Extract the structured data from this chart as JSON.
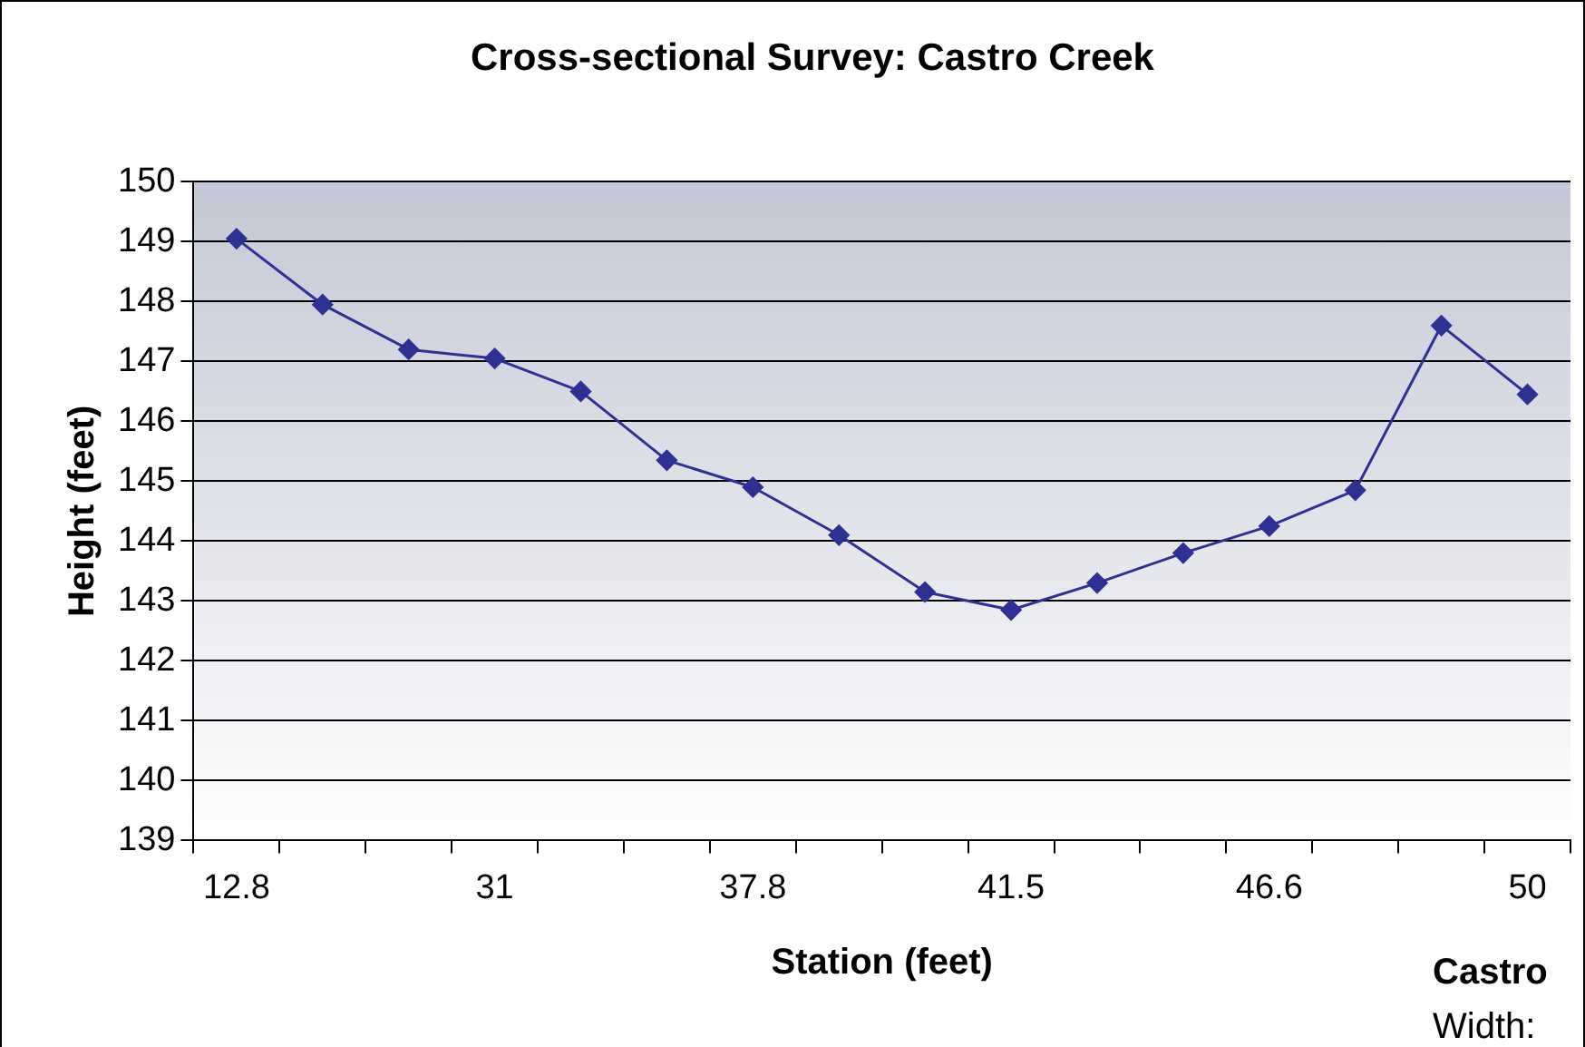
{
  "chart_data": {
    "type": "line",
    "title": "Cross-sectional Survey: Castro Creek",
    "xlabel": "Station (feet)",
    "ylabel": "Height (feet)",
    "categories": [
      "12.8",
      null,
      null,
      "31",
      null,
      null,
      "37.8",
      null,
      null,
      "41.5",
      null,
      null,
      "46.6",
      null,
      null,
      "50"
    ],
    "series": [
      {
        "color": "#2e3192",
        "values": [
          149.05,
          147.95,
          147.2,
          147.05,
          146.5,
          145.35,
          144.9,
          144.1,
          143.15,
          142.85,
          143.3,
          143.8,
          144.25,
          144.85,
          147.6,
          146.45
        ]
      }
    ],
    "ylim": [
      139,
      150
    ],
    "yticks": [
      139,
      140,
      141,
      142,
      143,
      144,
      145,
      146,
      147,
      148,
      149,
      150
    ],
    "grid": "y",
    "legend": false,
    "marker": "diamond",
    "line_style": "solid",
    "annotations": [
      "Castro",
      "Width:"
    ]
  }
}
